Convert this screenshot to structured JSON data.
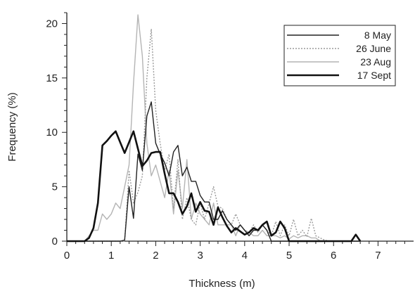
{
  "chart_data": {
    "type": "line",
    "title": "",
    "xlabel": "Thickness (m)",
    "ylabel": "Frequency (%)",
    "xlim": [
      0,
      7.8
    ],
    "ylim": [
      0,
      21
    ],
    "xticks": [
      0,
      1,
      2,
      3,
      4,
      5,
      6,
      7
    ],
    "yticks": [
      0,
      5,
      10,
      15,
      20
    ],
    "legend_position": "top-right",
    "grid": false,
    "series": [
      {
        "name": "8 May",
        "color": "#222222",
        "dash": "solid",
        "weight": "thin",
        "x": [
          0,
          0.1,
          0.2,
          0.3,
          0.4,
          0.5,
          0.6,
          0.7,
          0.8,
          0.9,
          1.0,
          1.1,
          1.2,
          1.3,
          1.4,
          1.5,
          1.6,
          1.7,
          1.8,
          1.9,
          2.0,
          2.1,
          2.2,
          2.3,
          2.4,
          2.5,
          2.6,
          2.7,
          2.8,
          2.9,
          3.0,
          3.1,
          3.2,
          3.3,
          3.4,
          3.5,
          3.6,
          3.7,
          3.8,
          3.9,
          4.0,
          4.1,
          4.2,
          4.3,
          4.4,
          4.5,
          4.6,
          4.7,
          4.8,
          4.9,
          5.0,
          5.1,
          5.2,
          5.3,
          5.4,
          5.5,
          5.6,
          5.7,
          5.8,
          5.9,
          6.0,
          6.1,
          6.2,
          6.3,
          6.4,
          6.5,
          6.6
        ],
        "y": [
          0,
          0,
          0,
          0,
          0,
          0,
          0,
          0,
          0,
          0,
          0,
          0,
          0,
          0.1,
          5.0,
          2.1,
          8.0,
          6.5,
          11.5,
          12.8,
          9.0,
          8.0,
          7.2,
          6.0,
          8.2,
          8.8,
          6.0,
          6.8,
          5.5,
          5.5,
          4.2,
          3.6,
          3.6,
          2.0,
          2.0,
          2.8,
          2.0,
          1.5,
          1.0,
          1.5,
          1.0,
          0.5,
          1.0,
          1.0,
          1.5,
          1.0,
          0,
          0,
          0,
          0,
          0,
          0,
          0,
          0,
          0,
          0,
          0,
          0,
          0,
          0,
          0,
          0,
          0,
          0,
          0,
          0,
          0
        ]
      },
      {
        "name": "26 June",
        "color": "#9a9a9a",
        "dash": "dotted",
        "weight": "thin",
        "x": [
          0,
          0.1,
          0.2,
          0.3,
          0.4,
          0.5,
          0.6,
          0.7,
          0.8,
          0.9,
          1.0,
          1.1,
          1.2,
          1.3,
          1.4,
          1.5,
          1.6,
          1.7,
          1.8,
          1.9,
          2.0,
          2.1,
          2.2,
          2.3,
          2.4,
          2.5,
          2.6,
          2.7,
          2.8,
          2.9,
          3.0,
          3.1,
          3.2,
          3.3,
          3.4,
          3.5,
          3.6,
          3.7,
          3.8,
          3.9,
          4.0,
          4.1,
          4.2,
          4.3,
          4.4,
          4.5,
          4.6,
          4.7,
          4.8,
          4.9,
          5.0,
          5.1,
          5.2,
          5.3,
          5.4,
          5.5,
          5.6,
          5.7,
          5.8,
          5.9,
          6.0,
          6.1,
          6.2,
          6.3,
          6.4,
          6.5,
          6.6
        ],
        "y": [
          0,
          0,
          0,
          0,
          0,
          0,
          0,
          0,
          0,
          0,
          0,
          0,
          0,
          0,
          6.5,
          3.5,
          4.5,
          6.0,
          15.0,
          19.5,
          12.0,
          9.0,
          6.5,
          8.0,
          3.0,
          7.5,
          2.0,
          4.0,
          2.0,
          1.5,
          3.5,
          2.0,
          3.5,
          5.0,
          3.2,
          3.0,
          2.0,
          1.5,
          2.5,
          1.5,
          1.0,
          0.8,
          1.5,
          0.8,
          1.5,
          1.0,
          0.5,
          1.8,
          0.5,
          1.5,
          0.5,
          2.0,
          0.5,
          1.0,
          0.4,
          2.1,
          0.5,
          0.3,
          0.1,
          0,
          0,
          0,
          0,
          0,
          0,
          0,
          0
        ]
      },
      {
        "name": "23 Aug",
        "color": "#b4b4b4",
        "dash": "solid",
        "weight": "thin",
        "x": [
          0,
          0.1,
          0.2,
          0.3,
          0.4,
          0.5,
          0.6,
          0.7,
          0.8,
          0.9,
          1.0,
          1.1,
          1.2,
          1.3,
          1.4,
          1.5,
          1.6,
          1.7,
          1.8,
          1.9,
          2.0,
          2.1,
          2.2,
          2.3,
          2.4,
          2.5,
          2.6,
          2.7,
          2.8,
          2.9,
          3.0,
          3.1,
          3.2,
          3.3,
          3.4,
          3.5,
          3.6,
          3.7,
          3.8,
          3.9,
          4.0,
          4.1,
          4.2,
          4.3,
          4.4,
          4.5,
          4.6,
          4.7,
          4.8,
          4.9,
          5.0,
          5.1,
          5.2,
          5.3,
          5.4,
          5.5,
          5.6,
          5.7,
          5.8,
          5.9,
          6.0,
          6.1,
          6.2,
          6.3,
          6.4,
          6.5,
          6.6
        ],
        "y": [
          0,
          0,
          0,
          0,
          0,
          0.5,
          1.0,
          1.0,
          2.5,
          2.0,
          2.5,
          3.5,
          3.0,
          5.0,
          7.0,
          14.5,
          20.8,
          17.0,
          9.0,
          6.0,
          7.0,
          5.5,
          4.0,
          6.5,
          2.5,
          6.5,
          3.0,
          7.5,
          2.0,
          3.5,
          2.5,
          2.0,
          1.5,
          3.5,
          1.5,
          1.5,
          1.5,
          1.5,
          0.5,
          1.5,
          1.0,
          0.8,
          0.5,
          0.5,
          1.0,
          0.5,
          0.5,
          0.5,
          0.3,
          0.5,
          0.2,
          0.5,
          0.3,
          0.5,
          0.5,
          0.3,
          0.3,
          0,
          0,
          0,
          0,
          0,
          0,
          0,
          0,
          0,
          0
        ]
      },
      {
        "name": "17 Sept",
        "color": "#111111",
        "dash": "solid",
        "weight": "thick",
        "x": [
          0,
          0.1,
          0.2,
          0.3,
          0.4,
          0.5,
          0.6,
          0.7,
          0.8,
          0.9,
          1.0,
          1.1,
          1.2,
          1.3,
          1.4,
          1.5,
          1.6,
          1.7,
          1.8,
          1.9,
          2.0,
          2.1,
          2.2,
          2.3,
          2.4,
          2.5,
          2.6,
          2.7,
          2.8,
          2.9,
          3.0,
          3.1,
          3.2,
          3.3,
          3.4,
          3.5,
          3.6,
          3.7,
          3.8,
          3.9,
          4.0,
          4.1,
          4.2,
          4.3,
          4.4,
          4.5,
          4.6,
          4.7,
          4.8,
          4.9,
          5.0,
          5.1,
          5.2,
          5.3,
          5.4,
          5.5,
          5.6,
          5.7,
          5.8,
          5.9,
          6.0,
          6.1,
          6.2,
          6.3,
          6.4,
          6.5,
          6.6
        ],
        "y": [
          0,
          0,
          0,
          0,
          0,
          0.3,
          1.2,
          3.5,
          8.8,
          9.2,
          9.7,
          10.1,
          9.1,
          8.1,
          9.1,
          10.1,
          8.5,
          6.9,
          7.4,
          8.1,
          8.2,
          8.2,
          6.2,
          4.4,
          4.4,
          3.6,
          2.5,
          3.2,
          4.4,
          2.7,
          3.6,
          2.8,
          2.7,
          1.5,
          3.1,
          2.2,
          1.4,
          0.8,
          1.2,
          0.9,
          0.6,
          0.8,
          1.2,
          1.0,
          1.5,
          1.8,
          0.5,
          0.8,
          1.8,
          1.2,
          0,
          0,
          0,
          0,
          0,
          0,
          0,
          0,
          0,
          0,
          0,
          0,
          0,
          0,
          0,
          0.6,
          0
        ]
      }
    ]
  }
}
